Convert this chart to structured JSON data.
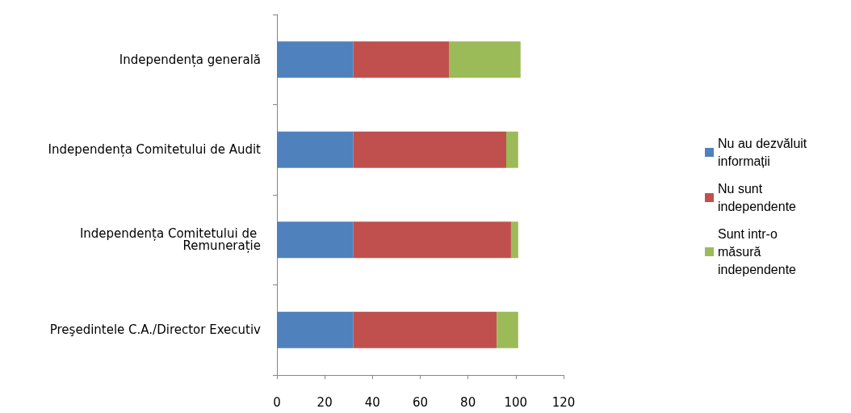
{
  "chart_data": {
    "type": "bar",
    "orientation": "horizontal",
    "stacked": true,
    "categories": [
      "Independența generală",
      "Independența Comitetului de Audit",
      "Independența Comitetului de Remunerație",
      "Preşedintele C.A./Director Executiv"
    ],
    "series": [
      {
        "name": "Nu au dezvăluit informații",
        "color": "#4f81bd",
        "values": [
          32,
          32,
          32,
          32
        ]
      },
      {
        "name": "Nu sunt independente",
        "color": "#c0504d",
        "values": [
          40,
          64,
          66,
          60
        ]
      },
      {
        "name": "Sunt intr-o măsură independente",
        "color": "#9bbb59",
        "values": [
          30,
          5,
          3,
          9
        ]
      }
    ],
    "xlim": [
      0,
      120
    ],
    "xticks": [
      0,
      20,
      40,
      60,
      80,
      100,
      120
    ],
    "grid": false,
    "legend": "right"
  }
}
